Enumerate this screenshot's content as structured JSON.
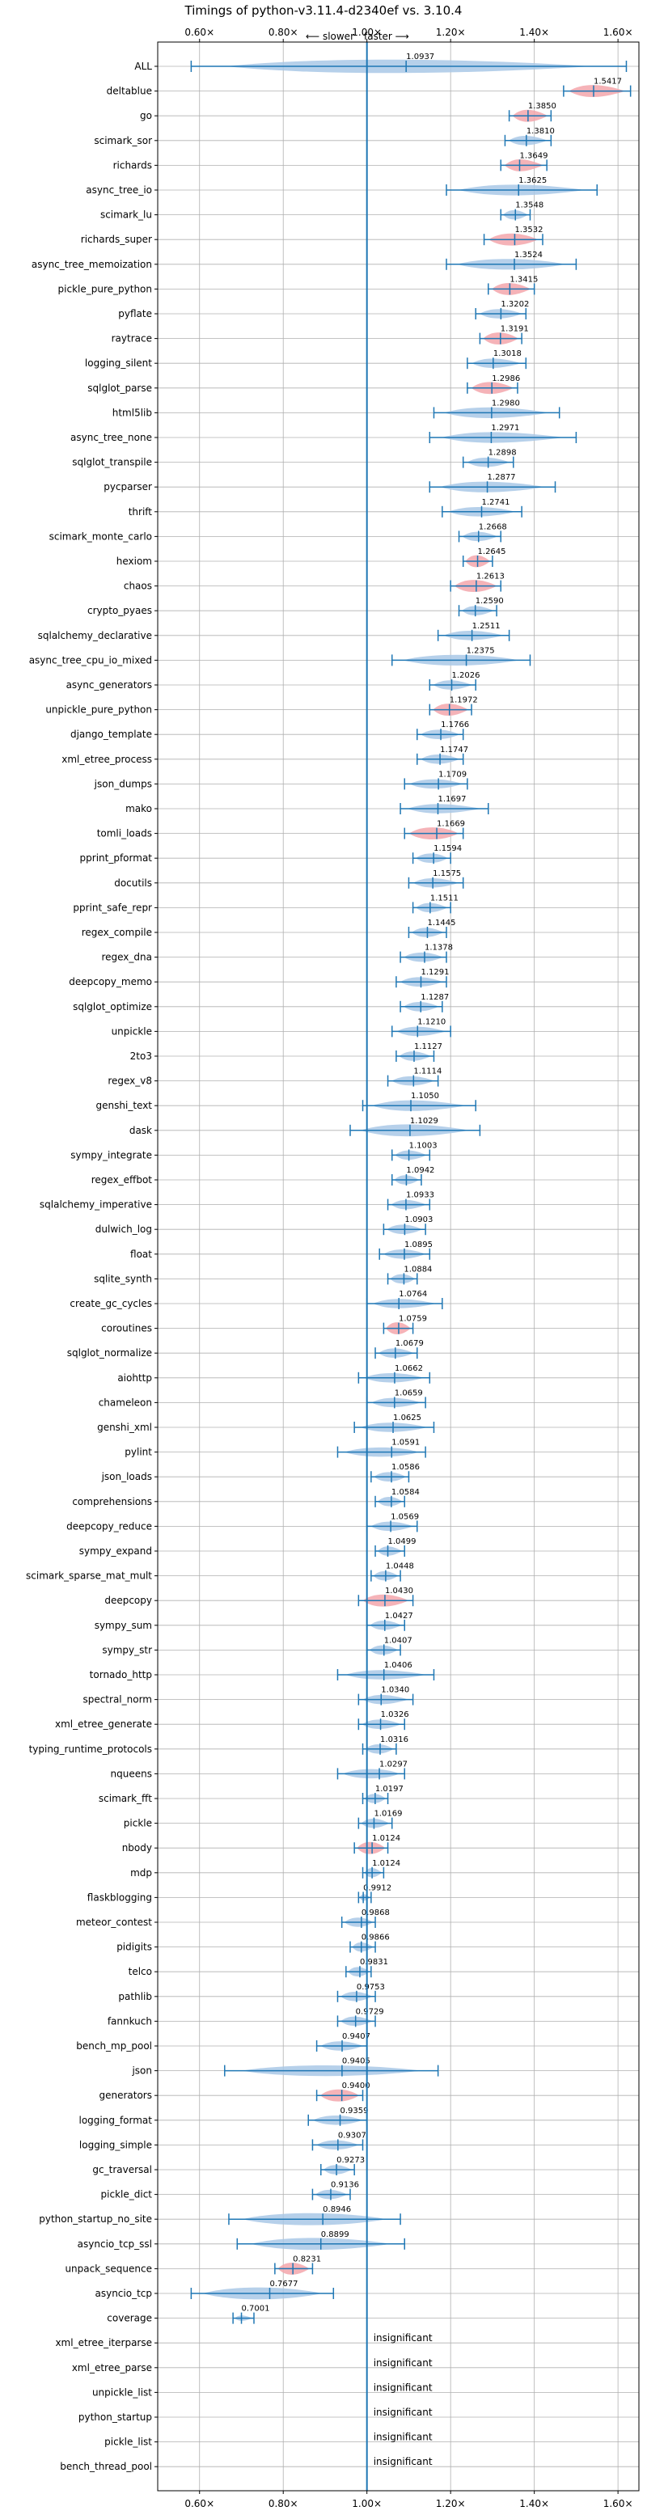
{
  "chart_data": {
    "type": "violin",
    "title": "Timings of python-v3.11.4-d2340ef vs. 3.10.4",
    "annotation_left": "⟵ slower",
    "annotation_right": "faster ⟶",
    "xlim": [
      0.5,
      1.65
    ],
    "xticks": [
      0.6,
      0.8,
      1.0,
      1.2,
      1.4,
      1.6
    ],
    "xtick_labels": [
      "0.60×",
      "0.80×",
      "1.00×",
      "1.20×",
      "1.40×",
      "1.60×"
    ],
    "reference_x": 1.0,
    "grid": true,
    "colors": {
      "normal": "#a9c8e6",
      "significant": "#f3a6ab",
      "whisker": "#1f77b4"
    },
    "insignificant_label": "insignificant",
    "benchmarks": [
      {
        "name": "ALL",
        "value": 1.0937,
        "min": 0.58,
        "max": 1.62,
        "width": 1.0,
        "color": "normal"
      },
      {
        "name": "deltablue",
        "value": 1.5417,
        "min": 1.47,
        "max": 1.63,
        "width": 0.9,
        "color": "significant"
      },
      {
        "name": "go",
        "value": 1.385,
        "min": 1.34,
        "max": 1.44,
        "width": 0.9,
        "color": "significant"
      },
      {
        "name": "scimark_sor",
        "value": 1.381,
        "min": 1.33,
        "max": 1.44,
        "width": 0.7,
        "color": "normal"
      },
      {
        "name": "richards",
        "value": 1.3649,
        "min": 1.32,
        "max": 1.43,
        "width": 0.9,
        "color": "significant"
      },
      {
        "name": "async_tree_io",
        "value": 1.3625,
        "min": 1.19,
        "max": 1.55,
        "width": 0.8,
        "color": "normal"
      },
      {
        "name": "scimark_lu",
        "value": 1.3548,
        "min": 1.32,
        "max": 1.39,
        "width": 0.7,
        "color": "normal"
      },
      {
        "name": "richards_super",
        "value": 1.3532,
        "min": 1.28,
        "max": 1.42,
        "width": 0.9,
        "color": "significant"
      },
      {
        "name": "async_tree_memoization",
        "value": 1.3524,
        "min": 1.19,
        "max": 1.5,
        "width": 0.8,
        "color": "normal"
      },
      {
        "name": "pickle_pure_python",
        "value": 1.3415,
        "min": 1.29,
        "max": 1.4,
        "width": 0.9,
        "color": "significant"
      },
      {
        "name": "pyflate",
        "value": 1.3202,
        "min": 1.26,
        "max": 1.38,
        "width": 0.7,
        "color": "normal"
      },
      {
        "name": "raytrace",
        "value": 1.3191,
        "min": 1.27,
        "max": 1.37,
        "width": 0.9,
        "color": "significant"
      },
      {
        "name": "logging_silent",
        "value": 1.3018,
        "min": 1.24,
        "max": 1.38,
        "width": 0.7,
        "color": "normal"
      },
      {
        "name": "sqlglot_parse",
        "value": 1.2986,
        "min": 1.24,
        "max": 1.36,
        "width": 0.9,
        "color": "significant"
      },
      {
        "name": "html5lib",
        "value": 1.298,
        "min": 1.16,
        "max": 1.46,
        "width": 0.8,
        "color": "normal"
      },
      {
        "name": "async_tree_none",
        "value": 1.2971,
        "min": 1.15,
        "max": 1.5,
        "width": 0.8,
        "color": "normal"
      },
      {
        "name": "sqlglot_transpile",
        "value": 1.2898,
        "min": 1.23,
        "max": 1.35,
        "width": 0.7,
        "color": "normal"
      },
      {
        "name": "pycparser",
        "value": 1.2877,
        "min": 1.15,
        "max": 1.45,
        "width": 0.8,
        "color": "normal"
      },
      {
        "name": "thrift",
        "value": 1.2741,
        "min": 1.18,
        "max": 1.37,
        "width": 0.7,
        "color": "normal"
      },
      {
        "name": "scimark_monte_carlo",
        "value": 1.2668,
        "min": 1.22,
        "max": 1.32,
        "width": 0.7,
        "color": "normal"
      },
      {
        "name": "hexiom",
        "value": 1.2645,
        "min": 1.23,
        "max": 1.3,
        "width": 0.9,
        "color": "significant"
      },
      {
        "name": "chaos",
        "value": 1.2613,
        "min": 1.2,
        "max": 1.32,
        "width": 0.9,
        "color": "significant"
      },
      {
        "name": "crypto_pyaes",
        "value": 1.259,
        "min": 1.22,
        "max": 1.31,
        "width": 0.7,
        "color": "normal"
      },
      {
        "name": "sqlalchemy_declarative",
        "value": 1.2511,
        "min": 1.17,
        "max": 1.34,
        "width": 0.7,
        "color": "normal"
      },
      {
        "name": "async_tree_cpu_io_mixed",
        "value": 1.2375,
        "min": 1.06,
        "max": 1.39,
        "width": 0.8,
        "color": "normal"
      },
      {
        "name": "async_generators",
        "value": 1.2026,
        "min": 1.15,
        "max": 1.26,
        "width": 0.7,
        "color": "normal"
      },
      {
        "name": "unpickle_pure_python",
        "value": 1.1972,
        "min": 1.15,
        "max": 1.25,
        "width": 0.9,
        "color": "significant"
      },
      {
        "name": "django_template",
        "value": 1.1766,
        "min": 1.12,
        "max": 1.23,
        "width": 0.7,
        "color": "normal"
      },
      {
        "name": "xml_etree_process",
        "value": 1.1747,
        "min": 1.12,
        "max": 1.23,
        "width": 0.7,
        "color": "normal"
      },
      {
        "name": "json_dumps",
        "value": 1.1709,
        "min": 1.09,
        "max": 1.24,
        "width": 0.7,
        "color": "normal"
      },
      {
        "name": "mako",
        "value": 1.1697,
        "min": 1.08,
        "max": 1.29,
        "width": 0.7,
        "color": "normal"
      },
      {
        "name": "tomli_loads",
        "value": 1.1669,
        "min": 1.09,
        "max": 1.23,
        "width": 0.9,
        "color": "significant"
      },
      {
        "name": "pprint_pformat",
        "value": 1.1594,
        "min": 1.11,
        "max": 1.2,
        "width": 0.7,
        "color": "normal"
      },
      {
        "name": "docutils",
        "value": 1.1575,
        "min": 1.1,
        "max": 1.23,
        "width": 0.7,
        "color": "normal"
      },
      {
        "name": "pprint_safe_repr",
        "value": 1.1511,
        "min": 1.11,
        "max": 1.2,
        "width": 0.7,
        "color": "normal"
      },
      {
        "name": "regex_compile",
        "value": 1.1445,
        "min": 1.1,
        "max": 1.19,
        "width": 0.7,
        "color": "normal"
      },
      {
        "name": "regex_dna",
        "value": 1.1378,
        "min": 1.08,
        "max": 1.19,
        "width": 0.7,
        "color": "normal"
      },
      {
        "name": "deepcopy_memo",
        "value": 1.1291,
        "min": 1.07,
        "max": 1.19,
        "width": 0.7,
        "color": "normal"
      },
      {
        "name": "sqlglot_optimize",
        "value": 1.1287,
        "min": 1.08,
        "max": 1.18,
        "width": 0.7,
        "color": "normal"
      },
      {
        "name": "unpickle",
        "value": 1.121,
        "min": 1.06,
        "max": 1.2,
        "width": 0.7,
        "color": "normal"
      },
      {
        "name": "2to3",
        "value": 1.1127,
        "min": 1.07,
        "max": 1.16,
        "width": 0.7,
        "color": "normal"
      },
      {
        "name": "regex_v8",
        "value": 1.1114,
        "min": 1.05,
        "max": 1.17,
        "width": 0.7,
        "color": "normal"
      },
      {
        "name": "genshi_text",
        "value": 1.105,
        "min": 0.99,
        "max": 1.26,
        "width": 0.8,
        "color": "normal"
      },
      {
        "name": "dask",
        "value": 1.1029,
        "min": 0.96,
        "max": 1.27,
        "width": 0.9,
        "color": "normal"
      },
      {
        "name": "sympy_integrate",
        "value": 1.1003,
        "min": 1.06,
        "max": 1.15,
        "width": 0.7,
        "color": "normal"
      },
      {
        "name": "regex_effbot",
        "value": 1.0942,
        "min": 1.06,
        "max": 1.13,
        "width": 0.7,
        "color": "normal"
      },
      {
        "name": "sqlalchemy_imperative",
        "value": 1.0933,
        "min": 1.05,
        "max": 1.15,
        "width": 0.7,
        "color": "normal"
      },
      {
        "name": "dulwich_log",
        "value": 1.0903,
        "min": 1.04,
        "max": 1.14,
        "width": 0.7,
        "color": "normal"
      },
      {
        "name": "float",
        "value": 1.0895,
        "min": 1.03,
        "max": 1.15,
        "width": 0.7,
        "color": "normal"
      },
      {
        "name": "sqlite_synth",
        "value": 1.0884,
        "min": 1.05,
        "max": 1.12,
        "width": 0.7,
        "color": "normal"
      },
      {
        "name": "create_gc_cycles",
        "value": 1.0764,
        "min": 1.0,
        "max": 1.18,
        "width": 0.7,
        "color": "normal"
      },
      {
        "name": "coroutines",
        "value": 1.0759,
        "min": 1.04,
        "max": 1.11,
        "width": 0.9,
        "color": "significant"
      },
      {
        "name": "sqlglot_normalize",
        "value": 1.0679,
        "min": 1.02,
        "max": 1.12,
        "width": 0.7,
        "color": "normal"
      },
      {
        "name": "aiohttp",
        "value": 1.0662,
        "min": 0.98,
        "max": 1.15,
        "width": 0.7,
        "color": "normal"
      },
      {
        "name": "chameleon",
        "value": 1.0659,
        "min": 1.0,
        "max": 1.14,
        "width": 0.7,
        "color": "normal"
      },
      {
        "name": "genshi_xml",
        "value": 1.0625,
        "min": 0.97,
        "max": 1.16,
        "width": 0.7,
        "color": "normal"
      },
      {
        "name": "pylint",
        "value": 1.0591,
        "min": 0.93,
        "max": 1.14,
        "width": 0.7,
        "color": "normal"
      },
      {
        "name": "json_loads",
        "value": 1.0586,
        "min": 1.01,
        "max": 1.1,
        "width": 0.7,
        "color": "normal"
      },
      {
        "name": "comprehensions",
        "value": 1.0584,
        "min": 1.02,
        "max": 1.09,
        "width": 0.7,
        "color": "normal"
      },
      {
        "name": "deepcopy_reduce",
        "value": 1.0569,
        "min": 1.0,
        "max": 1.12,
        "width": 0.7,
        "color": "normal"
      },
      {
        "name": "sympy_expand",
        "value": 1.0499,
        "min": 1.02,
        "max": 1.09,
        "width": 0.7,
        "color": "normal"
      },
      {
        "name": "scimark_sparse_mat_mult",
        "value": 1.0448,
        "min": 1.01,
        "max": 1.08,
        "width": 0.7,
        "color": "normal"
      },
      {
        "name": "deepcopy",
        "value": 1.043,
        "min": 0.98,
        "max": 1.11,
        "width": 0.9,
        "color": "significant"
      },
      {
        "name": "sympy_sum",
        "value": 1.0427,
        "min": 1.0,
        "max": 1.09,
        "width": 0.7,
        "color": "normal"
      },
      {
        "name": "sympy_str",
        "value": 1.0407,
        "min": 1.0,
        "max": 1.08,
        "width": 0.7,
        "color": "normal"
      },
      {
        "name": "tornado_http",
        "value": 1.0406,
        "min": 0.93,
        "max": 1.16,
        "width": 0.7,
        "color": "normal"
      },
      {
        "name": "spectral_norm",
        "value": 1.034,
        "min": 0.98,
        "max": 1.11,
        "width": 0.7,
        "color": "normal"
      },
      {
        "name": "xml_etree_generate",
        "value": 1.0326,
        "min": 0.98,
        "max": 1.09,
        "width": 0.7,
        "color": "normal"
      },
      {
        "name": "typing_runtime_protocols",
        "value": 1.0316,
        "min": 0.99,
        "max": 1.07,
        "width": 0.7,
        "color": "normal"
      },
      {
        "name": "nqueens",
        "value": 1.0297,
        "min": 0.93,
        "max": 1.09,
        "width": 0.7,
        "color": "normal"
      },
      {
        "name": "scimark_fft",
        "value": 1.0197,
        "min": 0.99,
        "max": 1.05,
        "width": 0.7,
        "color": "normal"
      },
      {
        "name": "pickle",
        "value": 1.0169,
        "min": 0.98,
        "max": 1.06,
        "width": 0.7,
        "color": "normal"
      },
      {
        "name": "nbody",
        "value": 1.0124,
        "min": 0.97,
        "max": 1.05,
        "width": 0.9,
        "color": "significant"
      },
      {
        "name": "mdp",
        "value": 1.0124,
        "min": 0.99,
        "max": 1.04,
        "width": 0.7,
        "color": "normal"
      },
      {
        "name": "flaskblogging",
        "value": 0.9912,
        "min": 0.98,
        "max": 1.01,
        "width": 0.5,
        "color": "normal"
      },
      {
        "name": "meteor_contest",
        "value": 0.9868,
        "min": 0.94,
        "max": 1.02,
        "width": 0.7,
        "color": "normal"
      },
      {
        "name": "pidigits",
        "value": 0.9866,
        "min": 0.96,
        "max": 1.02,
        "width": 0.7,
        "color": "normal"
      },
      {
        "name": "telco",
        "value": 0.9831,
        "min": 0.95,
        "max": 1.01,
        "width": 0.7,
        "color": "normal"
      },
      {
        "name": "pathlib",
        "value": 0.9753,
        "min": 0.93,
        "max": 1.02,
        "width": 0.7,
        "color": "normal"
      },
      {
        "name": "fannkuch",
        "value": 0.9729,
        "min": 0.93,
        "max": 1.02,
        "width": 0.7,
        "color": "normal"
      },
      {
        "name": "bench_mp_pool",
        "value": 0.9407,
        "min": 0.88,
        "max": 1.0,
        "width": 0.7,
        "color": "normal"
      },
      {
        "name": "json",
        "value": 0.9405,
        "min": 0.66,
        "max": 1.17,
        "width": 0.8,
        "color": "normal"
      },
      {
        "name": "generators",
        "value": 0.94,
        "min": 0.88,
        "max": 0.99,
        "width": 0.9,
        "color": "significant"
      },
      {
        "name": "logging_format",
        "value": 0.9359,
        "min": 0.86,
        "max": 1.0,
        "width": 0.7,
        "color": "normal"
      },
      {
        "name": "logging_simple",
        "value": 0.9307,
        "min": 0.87,
        "max": 0.99,
        "width": 0.7,
        "color": "normal"
      },
      {
        "name": "gc_traversal",
        "value": 0.9273,
        "min": 0.89,
        "max": 0.97,
        "width": 0.7,
        "color": "normal"
      },
      {
        "name": "pickle_dict",
        "value": 0.9136,
        "min": 0.87,
        "max": 0.96,
        "width": 0.7,
        "color": "normal"
      },
      {
        "name": "python_startup_no_site",
        "value": 0.8946,
        "min": 0.67,
        "max": 1.08,
        "width": 0.9,
        "color": "normal"
      },
      {
        "name": "asyncio_tcp_ssl",
        "value": 0.8899,
        "min": 0.69,
        "max": 1.09,
        "width": 0.9,
        "color": "normal"
      },
      {
        "name": "unpack_sequence",
        "value": 0.8231,
        "min": 0.78,
        "max": 0.87,
        "width": 0.9,
        "color": "significant"
      },
      {
        "name": "asyncio_tcp",
        "value": 0.7677,
        "min": 0.58,
        "max": 0.92,
        "width": 0.9,
        "color": "normal"
      },
      {
        "name": "coverage",
        "value": 0.7001,
        "min": 0.68,
        "max": 0.73,
        "width": 0.4,
        "color": "normal"
      },
      {
        "name": "xml_etree_iterparse",
        "value": null,
        "color": "insignificant"
      },
      {
        "name": "xml_etree_parse",
        "value": null,
        "color": "insignificant"
      },
      {
        "name": "unpickle_list",
        "value": null,
        "color": "insignificant"
      },
      {
        "name": "python_startup",
        "value": null,
        "color": "insignificant"
      },
      {
        "name": "pickle_list",
        "value": null,
        "color": "insignificant"
      },
      {
        "name": "bench_thread_pool",
        "value": null,
        "color": "insignificant"
      }
    ]
  }
}
